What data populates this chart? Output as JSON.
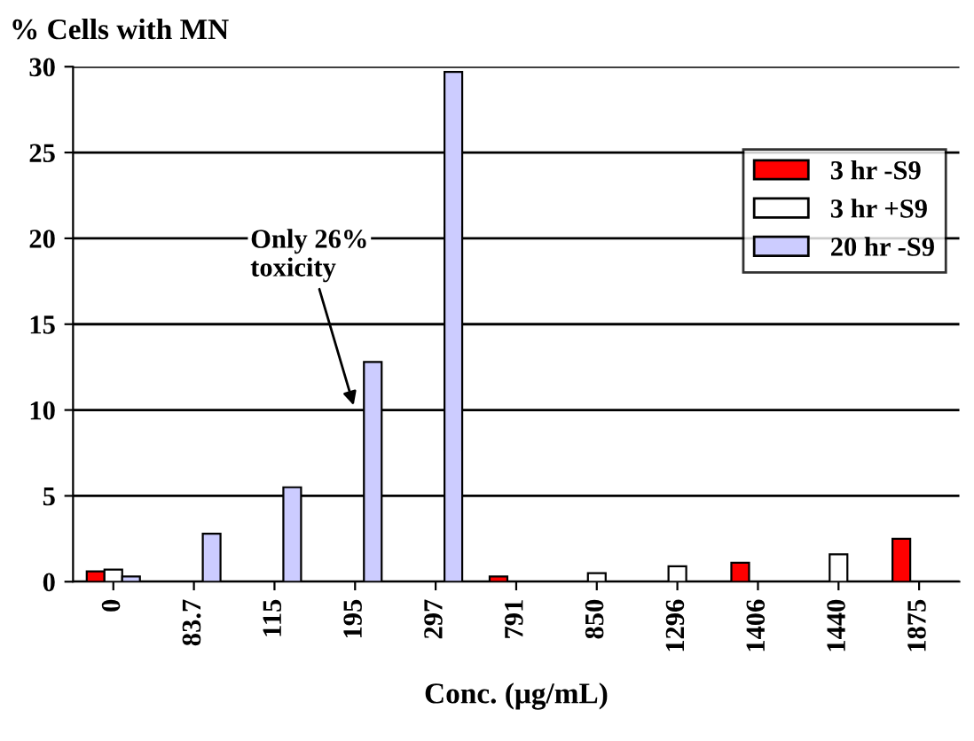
{
  "chart_data": {
    "type": "bar",
    "ylabel": "% Cells with MN",
    "xlabel": "Conc. (μg/mL)",
    "categories": [
      "0",
      "83.7",
      "115",
      "195",
      "297",
      "791",
      "850",
      "1296",
      "1406",
      "1440",
      "1875"
    ],
    "series": [
      {
        "name": "3 hr -S9",
        "color": "#ff0000",
        "values": [
          0.6,
          null,
          null,
          null,
          null,
          0.3,
          null,
          null,
          1.1,
          null,
          2.5
        ]
      },
      {
        "name": "3 hr +S9",
        "color": "#ffffff",
        "values": [
          0.7,
          null,
          null,
          null,
          null,
          null,
          0.5,
          0.9,
          null,
          1.6,
          null
        ]
      },
      {
        "name": "20 hr -S9",
        "color": "#ccccff",
        "values": [
          0.3,
          2.8,
          5.5,
          12.8,
          29.7,
          null,
          null,
          null,
          null,
          null,
          null
        ]
      }
    ],
    "ylim": [
      0,
      30
    ],
    "yticks": [
      0,
      5,
      10,
      15,
      20,
      25,
      30
    ],
    "grid": "y",
    "legend": "right",
    "annotations": [
      {
        "text": "Only 26%\ntoxicity",
        "x": "195",
        "y": 10
      }
    ]
  }
}
